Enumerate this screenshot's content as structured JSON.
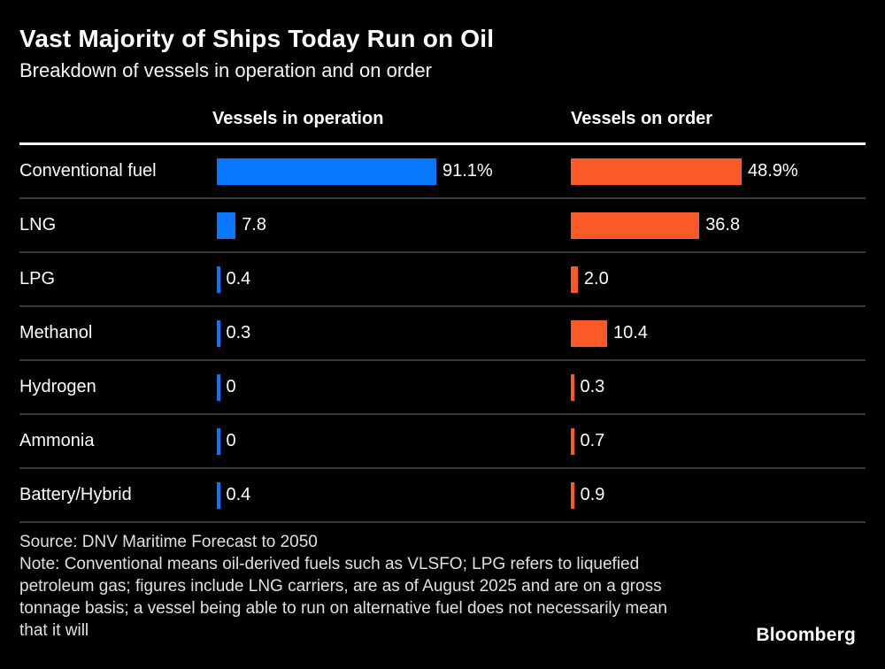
{
  "title": "Vast Majority of Ships Today Run on Oil",
  "subtitle": "Breakdown of vessels in operation and on order",
  "columns": [
    {
      "label": "Vessels in operation"
    },
    {
      "label": "Vessels on order"
    }
  ],
  "colors": {
    "background": "#000000",
    "operation_bar": "#0778ff",
    "order_bar": "#fa5a28",
    "header_rule": "#ffffff",
    "row_divider": "#383838",
    "footer_text": "#e0e0e0"
  },
  "chart_data": {
    "type": "bar",
    "orientation": "horizontal",
    "unit": "%",
    "categories": [
      "Conventional fuel",
      "LNG",
      "LPG",
      "Methanol",
      "Hydrogen",
      "Ammonia",
      "Battery/Hybrid"
    ],
    "series": [
      {
        "name": "Vessels in operation",
        "color": "#0778ff",
        "axis_max": 91.1,
        "values": [
          91.1,
          7.8,
          0.4,
          0.3,
          0,
          0,
          0.4
        ],
        "labels": [
          "91.1%",
          "7.8",
          "0.4",
          "0.3",
          "0",
          "0",
          "0.4"
        ]
      },
      {
        "name": "Vessels on order",
        "color": "#fa5a28",
        "axis_max": 48.9,
        "values": [
          48.9,
          36.8,
          2.0,
          10.4,
          0.3,
          0.7,
          0.9
        ],
        "labels": [
          "48.9%",
          "36.8",
          "2.0",
          "10.4",
          "0.3",
          "0.7",
          "0.9"
        ]
      }
    ]
  },
  "footer": {
    "source": "Source: DNV Maritime Forecast to 2050",
    "note": "Note: Conventional means oil-derived fuels such as VLSFO; LPG refers to liquefied petroleum gas; figures include LNG carriers, are as of August 2025 and are on a gross tonnage basis; a vessel being able to run on alternative fuel does not necessarily mean that it will"
  },
  "branding": {
    "logo": "Bloomberg"
  }
}
